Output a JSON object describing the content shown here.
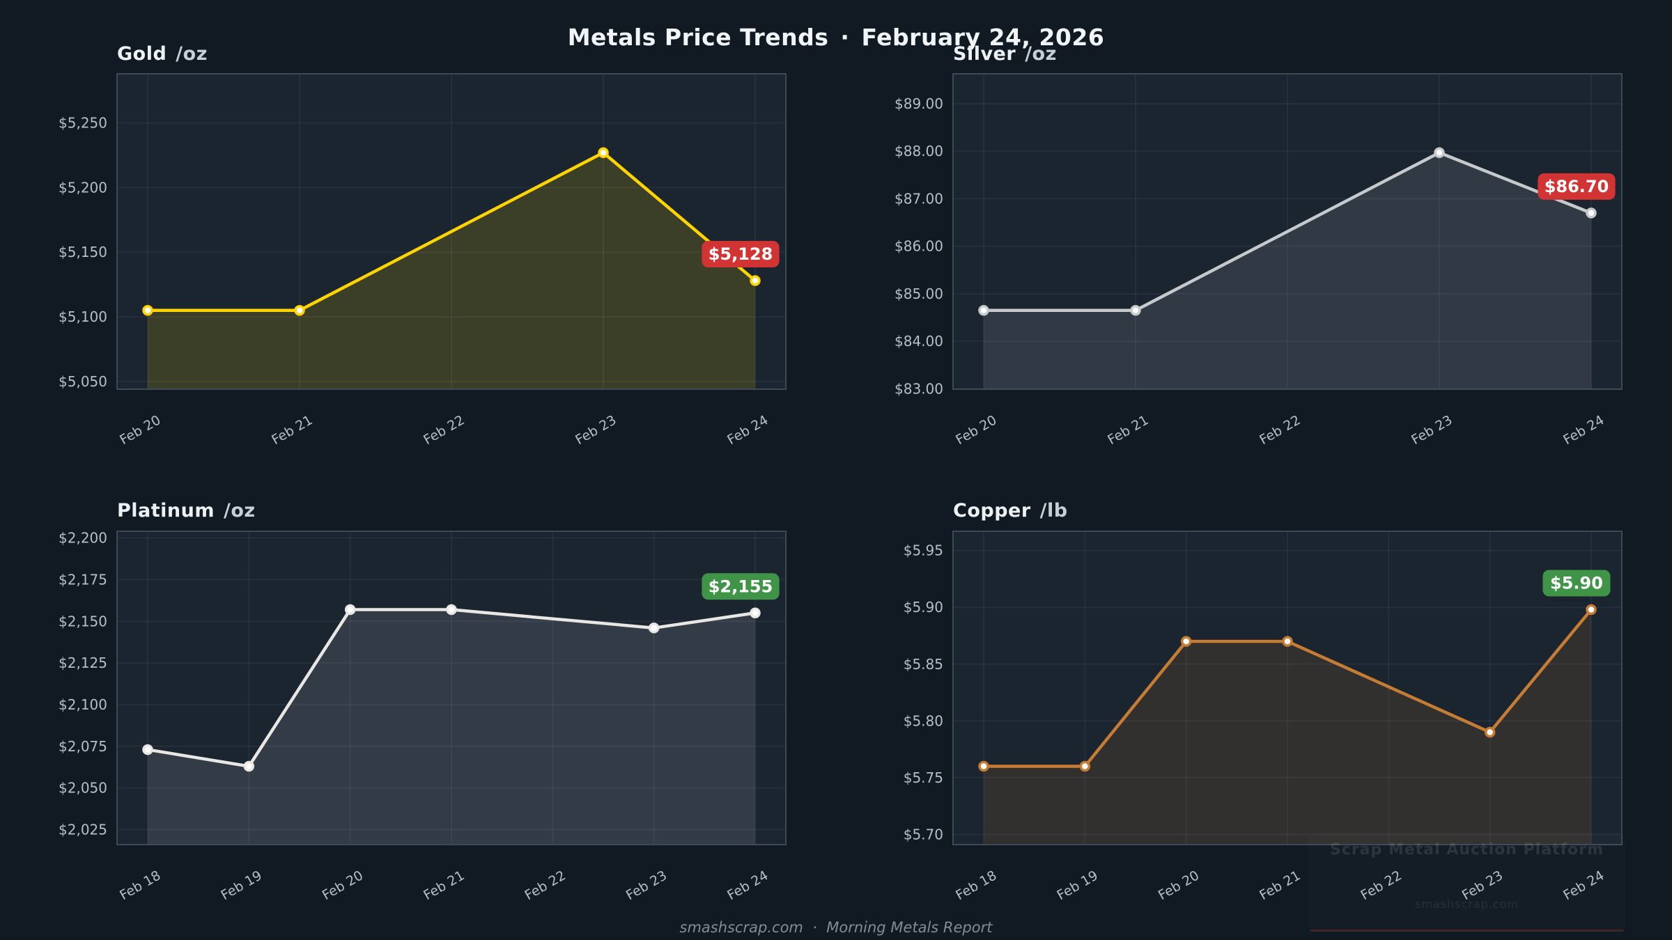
{
  "page": {
    "title": "Metals Price Trends",
    "title_separator": "·",
    "title_date": "February 24, 2026",
    "footer": "smashscrap.com  ·  Morning Metals Report"
  },
  "watermark": {
    "line1": "Scrap Metal Auction Platform",
    "line2": "smashscrap.com"
  },
  "colors": {
    "background": "#111a23",
    "plot_background": "#1b2530",
    "plot_border": "#3c4956",
    "grid": "rgba(170,190,210,0.07)",
    "tick_label": "#b6bfc8",
    "title_text": "#eef1f4",
    "unit_text": "#c6ced6",
    "footer_text": "#828c96",
    "badge_up": "#3f9447",
    "badge_down": "#d23434",
    "badge_text": "#ffffff",
    "marker_fill": "#ffffff"
  },
  "chart_data": [
    {
      "type": "line",
      "title": "Gold",
      "unit": "/oz",
      "line_color": "#ffd400",
      "fill_color": "rgba(255,213,0,0.15)",
      "badge_color": "#d23434",
      "last_value_label": "$5,128",
      "grid": true,
      "legend": false,
      "ylim": [
        5044,
        5288
      ],
      "categories": [
        "Feb 20",
        "Feb 21",
        "Feb 22",
        "Feb 23",
        "Feb 24"
      ],
      "points": [
        {
          "x": "Feb 20",
          "y": 5105
        },
        {
          "x": "Feb 21",
          "y": 5105
        },
        {
          "x": "Feb 23",
          "y": 5227
        },
        {
          "x": "Feb 24",
          "y": 5128
        }
      ],
      "yticks": [
        {
          "value": 5050,
          "label": "$5,050"
        },
        {
          "value": 5100,
          "label": "$5,100"
        },
        {
          "value": 5150,
          "label": "$5,150"
        },
        {
          "value": 5200,
          "label": "$5,200"
        },
        {
          "value": 5250,
          "label": "$5,250"
        }
      ]
    },
    {
      "type": "line",
      "title": "Silver",
      "unit": "/oz",
      "line_color": "#c7cacd",
      "fill_color": "rgba(201,204,208,0.13)",
      "badge_color": "#d23434",
      "last_value_label": "$86.70",
      "grid": true,
      "legend": false,
      "ylim": [
        82.99,
        89.63
      ],
      "categories": [
        "Feb 20",
        "Feb 21",
        "Feb 22",
        "Feb 23",
        "Feb 24"
      ],
      "points": [
        {
          "x": "Feb 20",
          "y": 84.65
        },
        {
          "x": "Feb 21",
          "y": 84.65
        },
        {
          "x": "Feb 23",
          "y": 87.97
        },
        {
          "x": "Feb 24",
          "y": 86.7
        }
      ],
      "yticks": [
        {
          "value": 83,
          "label": "$83.00"
        },
        {
          "value": 84,
          "label": "$84.00"
        },
        {
          "value": 85,
          "label": "$85.00"
        },
        {
          "value": 86,
          "label": "$86.00"
        },
        {
          "value": 87,
          "label": "$87.00"
        },
        {
          "value": 88,
          "label": "$88.00"
        },
        {
          "value": 89,
          "label": "$89.00"
        }
      ]
    },
    {
      "type": "line",
      "title": "Platinum",
      "unit": "/oz",
      "line_color": "#e9e7e4",
      "fill_color": "rgba(232,231,229,0.12)",
      "badge_color": "#3f9447",
      "last_value_label": "$2,155",
      "grid": true,
      "legend": false,
      "ylim": [
        2016,
        2204
      ],
      "categories": [
        "Feb 18",
        "Feb 19",
        "Feb 20",
        "Feb 21",
        "Feb 22",
        "Feb 23",
        "Feb 24"
      ],
      "points": [
        {
          "x": "Feb 18",
          "y": 2073
        },
        {
          "x": "Feb 19",
          "y": 2063
        },
        {
          "x": "Feb 20",
          "y": 2157
        },
        {
          "x": "Feb 21",
          "y": 2157
        },
        {
          "x": "Feb 23",
          "y": 2146
        },
        {
          "x": "Feb 24",
          "y": 2155
        }
      ],
      "yticks": [
        {
          "value": 2025,
          "label": "$2,025"
        },
        {
          "value": 2050,
          "label": "$2,050"
        },
        {
          "value": 2075,
          "label": "$2,075"
        },
        {
          "value": 2100,
          "label": "$2,100"
        },
        {
          "value": 2125,
          "label": "$2,125"
        },
        {
          "value": 2150,
          "label": "$2,150"
        },
        {
          "value": 2175,
          "label": "$2,175"
        },
        {
          "value": 2200,
          "label": "$2,200"
        }
      ]
    },
    {
      "type": "line",
      "title": "Copper",
      "unit": "/lb",
      "line_color": "#c77c33",
      "fill_color": "rgba(199,124,50,0.13)",
      "badge_color": "#3f9447",
      "last_value_label": "$5.90",
      "grid": true,
      "legend": false,
      "ylim": [
        5.691,
        5.967
      ],
      "categories": [
        "Feb 18",
        "Feb 19",
        "Feb 20",
        "Feb 21",
        "Feb 22",
        "Feb 23",
        "Feb 24"
      ],
      "points": [
        {
          "x": "Feb 18",
          "y": 5.76
        },
        {
          "x": "Feb 19",
          "y": 5.76
        },
        {
          "x": "Feb 20",
          "y": 5.87
        },
        {
          "x": "Feb 21",
          "y": 5.87
        },
        {
          "x": "Feb 23",
          "y": 5.79
        },
        {
          "x": "Feb 24",
          "y": 5.898
        }
      ],
      "yticks": [
        {
          "value": 5.7,
          "label": "$5.70"
        },
        {
          "value": 5.75,
          "label": "$5.75"
        },
        {
          "value": 5.8,
          "label": "$5.80"
        },
        {
          "value": 5.85,
          "label": "$5.85"
        },
        {
          "value": 5.9,
          "label": "$5.90"
        },
        {
          "value": 5.95,
          "label": "$5.95"
        }
      ]
    }
  ]
}
